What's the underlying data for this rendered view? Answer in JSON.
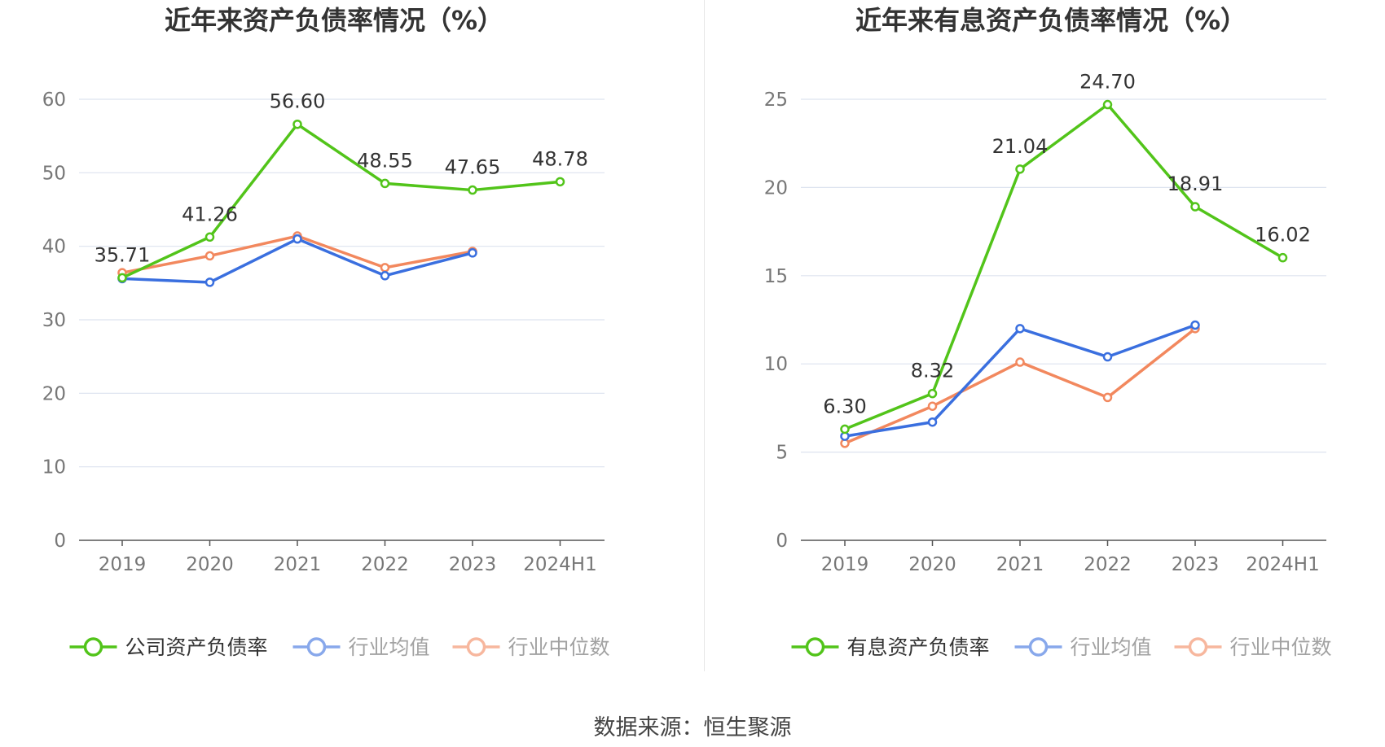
{
  "colors": {
    "company": "#52c41a",
    "average": "#3a6fdf",
    "median": "#f2885e",
    "grid": "#dde3ef",
    "axis": "#555555",
    "tick_label": "#777777",
    "title": "#333333",
    "data_label": "#333333"
  },
  "chart_data": [
    {
      "type": "line",
      "title": "近年来资产负债率情况（%）",
      "categories": [
        "2019",
        "2020",
        "2021",
        "2022",
        "2023",
        "2024H1"
      ],
      "ylim": [
        0,
        60
      ],
      "yticks": [
        0,
        10,
        20,
        30,
        40,
        50,
        60
      ],
      "series": [
        {
          "name": "公司资产负债率",
          "key": "company",
          "values": [
            35.71,
            41.26,
            56.6,
            48.55,
            47.65,
            48.78
          ],
          "labels": [
            "35.71",
            "41.26",
            "56.60",
            "48.55",
            "47.65",
            "48.78"
          ]
        },
        {
          "name": "行业均值",
          "key": "average",
          "values": [
            35.6,
            35.1,
            41.0,
            36.0,
            39.1,
            null
          ]
        },
        {
          "name": "行业中位数",
          "key": "median",
          "values": [
            36.4,
            38.7,
            41.4,
            37.1,
            39.3,
            null
          ]
        }
      ]
    },
    {
      "type": "line",
      "title": "近年来有息资产负债率情况（%）",
      "categories": [
        "2019",
        "2020",
        "2021",
        "2022",
        "2023",
        "2024H1"
      ],
      "ylim": [
        0,
        25
      ],
      "yticks": [
        0,
        5,
        10,
        15,
        20,
        25
      ],
      "series": [
        {
          "name": "有息资产负债率",
          "key": "company",
          "values": [
            6.3,
            8.32,
            21.04,
            24.7,
            18.91,
            16.02
          ],
          "labels": [
            "6.30",
            "8.32",
            "21.04",
            "24.70",
            "18.91",
            "16.02"
          ]
        },
        {
          "name": "行业均值",
          "key": "average",
          "values": [
            5.9,
            6.7,
            12.0,
            10.4,
            12.2,
            null
          ]
        },
        {
          "name": "行业中位数",
          "key": "median",
          "values": [
            5.5,
            7.6,
            10.1,
            8.1,
            12.0,
            null
          ]
        }
      ]
    }
  ],
  "source": "数据来源：恒生聚源"
}
